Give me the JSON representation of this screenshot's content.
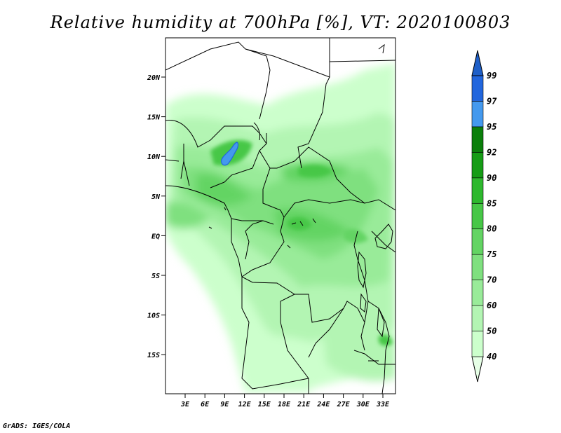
{
  "title": "Relative humidity at 700hPa [%], VT: 2020100803",
  "credit": "GrADS: IGES/COLA",
  "map": {
    "lat_labels": [
      "20N",
      "15N",
      "10N",
      "5N",
      "EQ",
      "5S",
      "10S",
      "15S"
    ],
    "lon_labels": [
      "3E",
      "6E",
      "9E",
      "12E",
      "15E",
      "18E",
      "21E",
      "24E",
      "27E",
      "30E",
      "33E"
    ]
  },
  "colorbar": {
    "labels": [
      "40",
      "50",
      "60",
      "70",
      "75",
      "80",
      "85",
      "90",
      "92",
      "95",
      "97",
      "99"
    ],
    "colors": [
      "#e6ffe6",
      "#ccffcc",
      "#b3f5b3",
      "#99eb99",
      "#7fe07f",
      "#63d463",
      "#47c747",
      "#2eb82e",
      "#169c16",
      "#0b7f0b",
      "#4499ee",
      "#2266dd",
      "#1e5fc8"
    ]
  }
}
